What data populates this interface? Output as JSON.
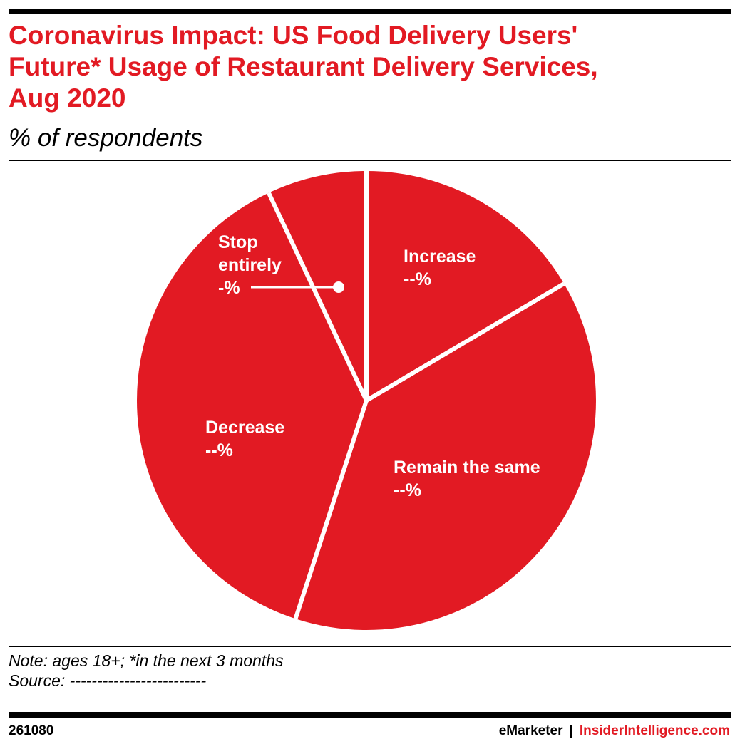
{
  "header": {
    "title_lines": [
      "Coronavirus Impact: US Food Delivery Users'",
      "Future* Usage of Restaurant Delivery Services,",
      "Aug 2020"
    ],
    "subtitle": "% of respondents"
  },
  "chart_data": {
    "type": "pie",
    "title": "Coronavirus Impact: US Food Delivery Users' Future* Usage of Restaurant Delivery Services, Aug 2020",
    "subtitle": "% of respondents",
    "slice_color": "#e21a23",
    "separator_color": "#ffffff",
    "slices": [
      {
        "label": "Increase",
        "value_label": "--%",
        "value": 16.5
      },
      {
        "label": "Remain the same",
        "value_label": "--%",
        "value": 38.5
      },
      {
        "label": "Decrease",
        "value_label": "--%",
        "value": 38.0
      },
      {
        "label": "Stop entirely",
        "value_label": "-%",
        "value": 7.0
      }
    ]
  },
  "notes": {
    "note": "Note: ages 18+; *in the next 3 months",
    "source": "Source: -------------------------"
  },
  "footer": {
    "chart_id": "261080",
    "brand": "eMarketer",
    "separator": "|",
    "site": "InsiderIntelligence.com"
  }
}
